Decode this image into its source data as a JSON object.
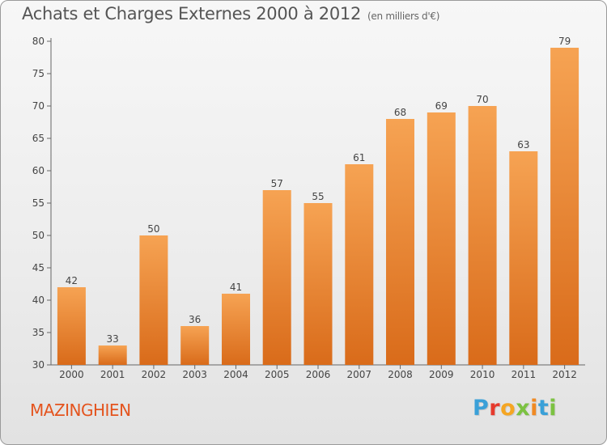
{
  "header": {
    "title": "Achats et Charges Externes 2000 à 2012",
    "unit": "(en milliers d'€)"
  },
  "footer": {
    "town": "MAZINGHIEN",
    "brand": "Proxiti",
    "brand_colors": [
      "#3aa0d8",
      "#e63a2d",
      "#f5a623",
      "#7cc242",
      "#f08a24",
      "#3aa0d8",
      "#7cc242"
    ]
  },
  "colors": {
    "bar_top": "#f6a353",
    "bar_bottom": "#d96b1a",
    "town": "#e4541e"
  },
  "chart_data": {
    "type": "bar",
    "title": "Achats et Charges Externes 2000 à 2012",
    "subtitle": "(en milliers d'€)",
    "categories": [
      "2000",
      "2001",
      "2002",
      "2003",
      "2004",
      "2005",
      "2006",
      "2007",
      "2008",
      "2009",
      "2010",
      "2011",
      "2012"
    ],
    "values": [
      42,
      33,
      50,
      36,
      41,
      57,
      55,
      61,
      68,
      69,
      70,
      63,
      79
    ],
    "ylim": [
      30,
      80
    ],
    "yticks": [
      30,
      35,
      40,
      45,
      50,
      55,
      60,
      65,
      70,
      75,
      80
    ],
    "grid": false,
    "data_labels": true
  }
}
